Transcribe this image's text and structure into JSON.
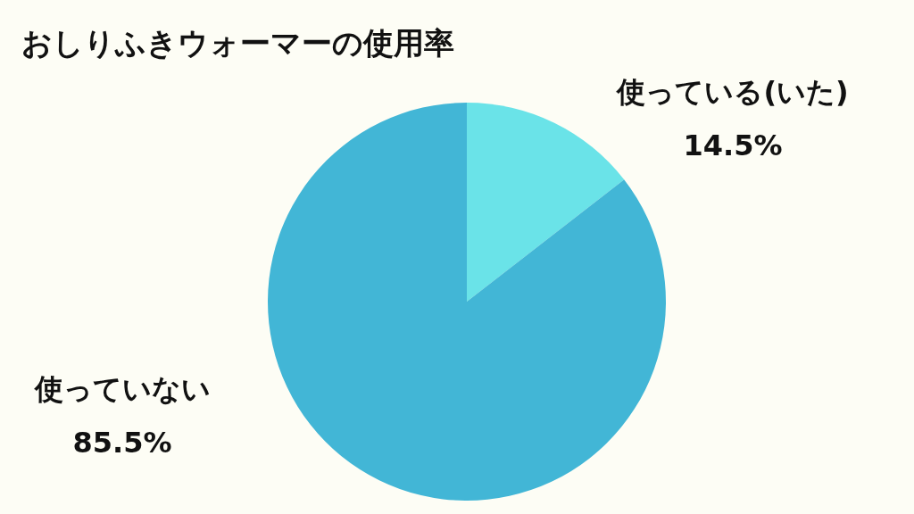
{
  "chart_data": {
    "type": "pie",
    "title": "おしりふきウォーマーの使用率",
    "categories": [
      "使っている(いた)",
      "使っていない"
    ],
    "values": [
      14.5,
      85.5
    ],
    "value_labels": [
      "14.5%",
      "85.5%"
    ],
    "colors": [
      "#6ae3e8",
      "#42b6d6"
    ],
    "legend": false
  }
}
